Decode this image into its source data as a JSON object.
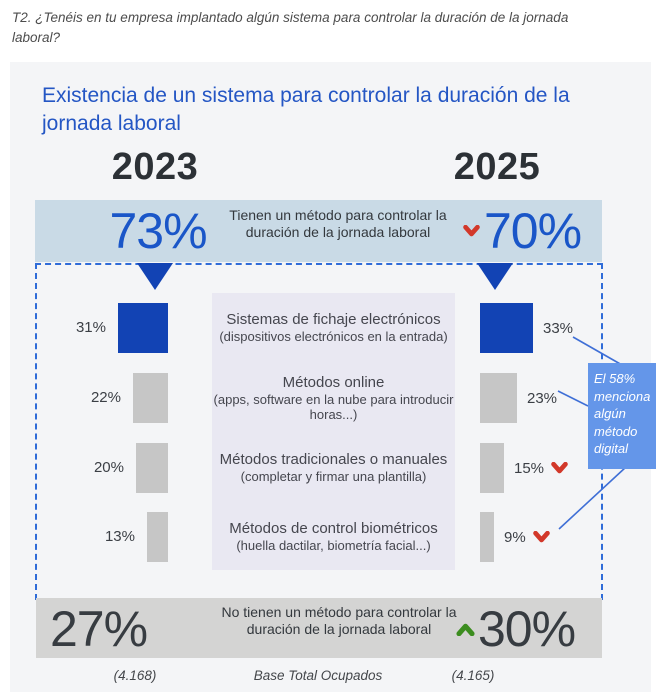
{
  "page": {
    "question": "T2. ¿Tenéis en tu empresa implantado algún sistema para controlar la duración de la jornada laboral?"
  },
  "card": {
    "title": "Existencia de un sistema para controlar la duración de la jornada laboral"
  },
  "colors": {
    "accent_blue": "#1243b4",
    "pct_blue": "#1a56c8",
    "band_blue": "#c9dae6",
    "bar_gray": "#c6c6c6",
    "panel_lavender": "#e9e8f2",
    "bottom_band_gray": "#d4d4d3",
    "negative_red": "#d2382a",
    "positive_green": "#3c8d1f",
    "callout_blue": "#6496e9",
    "connector_blue": "#3f6fd6"
  },
  "chart_data": {
    "type": "bar",
    "title": "Existencia de un sistema para controlar la duración de la jornada laboral",
    "years": [
      "2023",
      "2025"
    ],
    "summary_have": {
      "label": "Tienen un método para controlar la duración de la jornada laboral",
      "y2023": 73,
      "y2025": 70,
      "trend_2025": "down"
    },
    "summary_not_have": {
      "label": "No tienen un método para controlar la duración de la jornada laboral",
      "y2023": 27,
      "y2025": 30,
      "trend_2025": "up"
    },
    "categories": [
      {
        "title": "Sistemas de fichaje electrónicos",
        "subtitle": "(dispositivos electrónicos en la entrada)",
        "y2023": 31,
        "y2025": 33,
        "highlight": true,
        "trend_2025": null
      },
      {
        "title": "Métodos online",
        "subtitle": "(apps, software en la nube para introducir horas...)",
        "y2023": 22,
        "y2025": 23,
        "highlight": false,
        "trend_2025": null
      },
      {
        "title": "Métodos tradicionales o manuales",
        "subtitle": "(completar y firmar una plantilla)",
        "y2023": 20,
        "y2025": 15,
        "highlight": false,
        "trend_2025": "down"
      },
      {
        "title": "Métodos de control biométricos",
        "subtitle": "(huella dactilar, biometría facial...)",
        "y2023": 13,
        "y2025": 9,
        "highlight": false,
        "trend_2025": "down"
      }
    ],
    "annotation": "El 58% menciona algún método digital",
    "base": {
      "label": "Base Total Ocupados",
      "y2023": "(4.168)",
      "y2025": "(4.165)"
    },
    "axis": {
      "unit": "%",
      "bar_orientation": "horizontal",
      "grid": false
    }
  }
}
